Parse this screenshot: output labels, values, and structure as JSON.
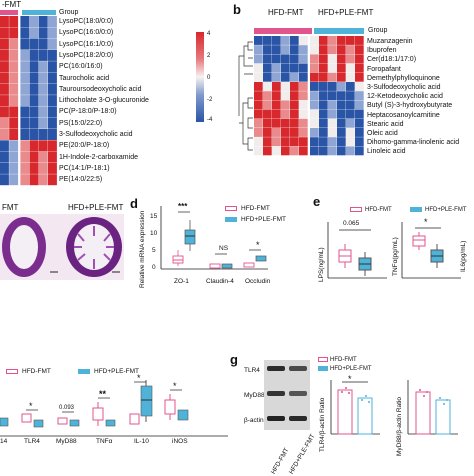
{
  "panel_a": {
    "header_left": "-FMT",
    "group_label": "Group",
    "metabolites": [
      "LysoPC(18:0/0:0)",
      "LysoPC(16:0/0:0)",
      "LysoPC(16:1/0:0)",
      "LysoPC(18:2/0:0)",
      "PC(16:0/16:0)",
      "Taurocholic acid",
      "Tauroursodeoxycholic acid",
      "Lithocholate 3-O-glucuronide",
      "PC(P-18:0/P-18:0)",
      "PS(15:0/22:0)",
      "3-Sulfodeoxycholic acid",
      "PE(20:0/P-18:0)",
      "1H-Indole-2-carboxamide",
      "PC(14:1/P-18:1)",
      "PE(14:0/22:5)"
    ],
    "colorbar_ticks": [
      "4",
      "2",
      "0",
      "-2",
      "-4"
    ],
    "colorbar_colors": {
      "high": "#d7282d",
      "mid": "#f7f2f2",
      "low": "#2a54a6"
    }
  },
  "panel_b": {
    "label": "b",
    "header_left": "HFD-FMT",
    "header_right": "HFD+PLE-FMT",
    "group_label": "Group",
    "metabolites": [
      "Muzanzagenin",
      "Ibuprofen",
      "Cer(d18:1/17:0)",
      "Foropafant",
      "Demethylphylloquinone",
      "3-Sulfodeoxycholic acid",
      "12-Ketodeoxycholic acid",
      "Butyl (S)-3-hydroxybutyrate",
      "Heptacosanoylcarnitine",
      "Stearic acid",
      "Oleic acid",
      "Dihomo-gamma-linolenic acid",
      "Linoleic acid"
    ]
  },
  "panel_c": {
    "header_left": "FMT",
    "header_right": "HFD+PLE-FMT"
  },
  "panel_d": {
    "label": "d",
    "legend": [
      "HFD-FMT",
      "HFD+PLE-FMT"
    ],
    "ylabel": "Relative mRNA expression",
    "yticks": [
      "0",
      "5",
      "10",
      "15"
    ],
    "categories": [
      "ZO-1",
      "Claudin-4",
      "Occludin"
    ],
    "significance": [
      "***",
      "NS",
      "*"
    ]
  },
  "panel_e": {
    "label": "e",
    "legend": [
      "HFD-FMT",
      "HFD+PLE-FMT"
    ],
    "pvalue": "0.065",
    "star": "*",
    "ylabels": [
      "LPS(ng/mL)",
      "TNFα(pg/mL)",
      "IL6(pg/mL)"
    ]
  },
  "panel_f": {
    "legend": [
      "HFD-FMT",
      "HFD+PLE-FMT"
    ],
    "categories": [
      "14",
      "TLR4",
      "MyD88",
      "TNFα",
      "IL-10",
      "iNOS"
    ],
    "significance": [
      "*",
      "0.093",
      "**",
      "*",
      "*"
    ]
  },
  "panel_g": {
    "label": "g",
    "blot_labels": [
      "TLR4",
      "MyD88",
      "β-actin"
    ],
    "lanes": [
      "HFD-FMT",
      "HFD+PLE-FMT"
    ],
    "legend": [
      "HFD-FMT",
      "HFD+PLE-FMT"
    ],
    "ratio_labels": [
      "TLR4/β-actin Ratio",
      "MyD88/β-actin Ratio"
    ],
    "star": "*"
  },
  "colors": {
    "pink": "#e2548d",
    "blue": "#4fb3d9",
    "heat_red": "#d7282d",
    "heat_blue": "#2a54a6"
  }
}
